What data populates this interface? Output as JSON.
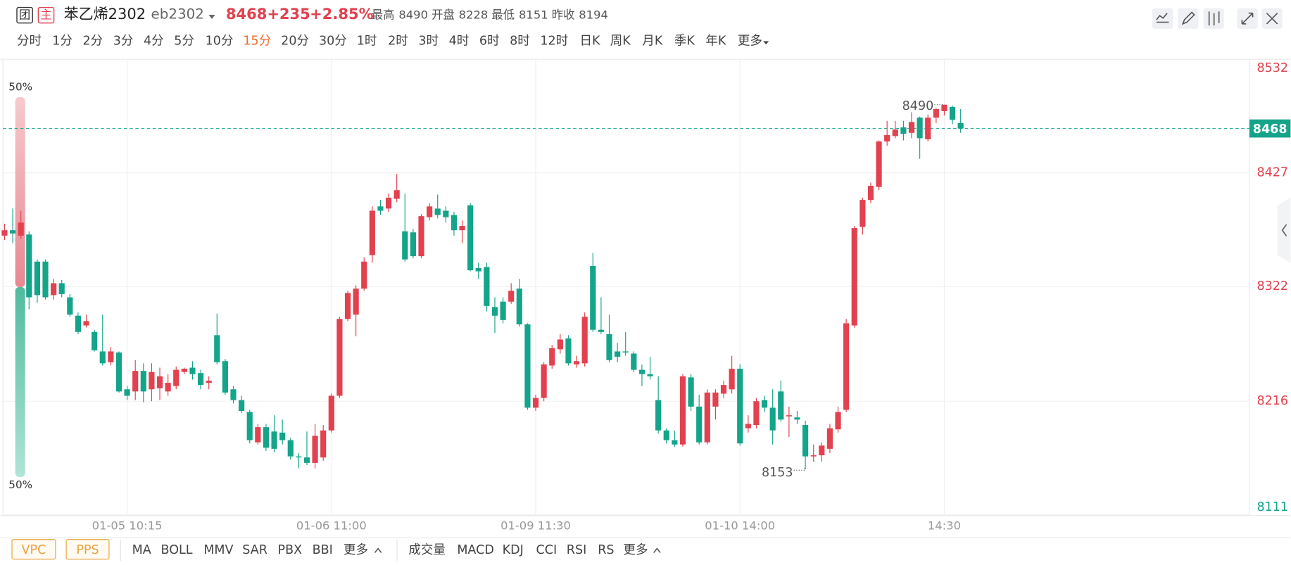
{
  "header": {
    "badge_1": "团",
    "badge_2": "主",
    "name": "苯乙烯2302",
    "code": "eb2302",
    "last": 8468,
    "change": "+235",
    "change_pct": "+2.85%",
    "high_label": "最高",
    "high": 8490,
    "open_label": "开盘",
    "open": 8228,
    "low_label": "最低",
    "low": 8151,
    "prev_close_label": "昨收",
    "prev_close": 8194
  },
  "timeframes": [
    "分时",
    "1分",
    "2分",
    "3分",
    "4分",
    "5分",
    "10分",
    "15分",
    "20分",
    "30分",
    "1时",
    "2时",
    "3时",
    "4时",
    "6时",
    "8时",
    "12时",
    "日K",
    "周K",
    "月K",
    "季K",
    "年K",
    "更多"
  ],
  "active_timeframe": "15分",
  "chart_data": {
    "type": "candlestick",
    "categories": [
      null,
      null,
      null,
      null,
      null,
      null,
      null,
      null,
      null,
      null,
      null,
      null,
      null,
      null,
      null,
      "01-05 10:15",
      null,
      null,
      null,
      null,
      null,
      null,
      null,
      null,
      null,
      null,
      null,
      null,
      null,
      null,
      null,
      null,
      null,
      null,
      null,
      null,
      null,
      null,
      null,
      null,
      "01-06 11:00",
      null,
      null,
      null,
      null,
      null,
      null,
      null,
      null,
      null,
      null,
      null,
      null,
      null,
      null,
      null,
      null,
      null,
      null,
      null,
      null,
      null,
      null,
      null,
      null,
      "01-09 11:30",
      null,
      null,
      null,
      null,
      null,
      null,
      null,
      null,
      null,
      null,
      null,
      null,
      null,
      null,
      null,
      null,
      null,
      null,
      null,
      null,
      null,
      null,
      null,
      null,
      "01-10 14:00",
      null,
      null,
      null,
      null,
      null,
      null,
      null,
      null,
      null,
      null,
      null,
      null,
      null,
      null,
      null,
      null,
      null,
      null,
      null,
      null,
      null,
      null,
      null,
      null,
      "14:30",
      null,
      null
    ],
    "open": [
      8369,
      8374,
      8369,
      8370,
      8345,
      8345,
      8314,
      8325,
      8312,
      8295,
      8286,
      8280,
      8262,
      8252,
      8261,
      8227,
      8225,
      8244,
      8227,
      8228,
      8225,
      8230,
      8243,
      8247,
      8242,
      8233,
      8277,
      8253,
      8227,
      8217,
      8206,
      8178,
      8192,
      8188,
      8187,
      8180,
      8165,
      8164,
      8159,
      8164,
      8189,
      8221,
      8292,
      8296,
      8320,
      8351,
      8396,
      8394,
      8403,
      8373,
      8372,
      8350,
      8386,
      8394,
      8392,
      8388,
      8374,
      8397,
      8339,
      8340,
      8303,
      8308,
      8308,
      8320,
      8287,
      8210,
      8219,
      8249,
      8264,
      8274,
      8250,
      8251,
      8341,
      8282,
      8278,
      8262,
      8262,
      8260,
      8245,
      8241,
      8217,
      8189,
      8180,
      8176,
      8238,
      8211,
      8178,
      8211,
      8223,
      8227,
      8246,
      8191,
      8194,
      8217,
      8210,
      8225,
      8202,
      8201,
      8194,
      8165,
      8166,
      8172,
      8190,
      8208,
      8286,
      8377,
      8402,
      8414,
      8456,
      8461,
      8469,
      8464,
      8478,
      8458,
      8478,
      8484,
      8488,
      8473
    ],
    "high": [
      8380,
      8394,
      8392,
      8373,
      8347,
      8347,
      8329,
      8328,
      8315,
      8298,
      8296,
      8282,
      8296,
      8266,
      8262,
      8230,
      8254,
      8251,
      8251,
      8247,
      8241,
      8248,
      8247,
      8253,
      8245,
      8239,
      8297,
      8255,
      8230,
      8221,
      8208,
      8195,
      8195,
      8203,
      8199,
      8182,
      8168,
      8188,
      8195,
      8194,
      8223,
      8294,
      8318,
      8323,
      8349,
      8396,
      8402,
      8408,
      8426,
      8408,
      8375,
      8389,
      8399,
      8407,
      8396,
      8391,
      8383,
      8399,
      8344,
      8344,
      8312,
      8312,
      8325,
      8329,
      8288,
      8222,
      8252,
      8268,
      8278,
      8277,
      8258,
      8298,
      8353,
      8312,
      8296,
      8270,
      8280,
      8262,
      8250,
      8257,
      8239,
      8191,
      8189,
      8241,
      8241,
      8222,
      8227,
      8227,
      8235,
      8258,
      8250,
      8203,
      8219,
      8221,
      8227,
      8235,
      8211,
      8207,
      8198,
      8176,
      8178,
      8195,
      8211,
      8292,
      8378,
      8404,
      8418,
      8457,
      8475,
      8475,
      8475,
      8483,
      8479,
      8481,
      8487,
      8490,
      8489,
      8486
    ],
    "low": [
      8365,
      8362,
      8366,
      8301,
      8307,
      8310,
      8310,
      8312,
      8294,
      8278,
      8284,
      8262,
      8249,
      8249,
      8224,
      8217,
      8217,
      8215,
      8216,
      8217,
      8221,
      8227,
      8241,
      8236,
      8227,
      8227,
      8250,
      8222,
      8214,
      8205,
      8177,
      8176,
      8170,
      8169,
      8176,
      8162,
      8154,
      8157,
      8154,
      8161,
      8187,
      8219,
      8290,
      8276,
      8318,
      8344,
      8388,
      8391,
      8400,
      8345,
      8348,
      8348,
      8383,
      8385,
      8381,
      8369,
      8362,
      8336,
      8329,
      8299,
      8279,
      8288,
      8306,
      8285,
      8208,
      8207,
      8216,
      8246,
      8260,
      8249,
      8247,
      8248,
      8280,
      8278,
      8252,
      8252,
      8258,
      8243,
      8230,
      8236,
      8186,
      8177,
      8174,
      8174,
      8207,
      8176,
      8176,
      8199,
      8219,
      8223,
      8175,
      8187,
      8191,
      8206,
      8176,
      8197,
      8183,
      8195,
      8153,
      8160,
      8160,
      8168,
      8187,
      8206,
      8284,
      8370,
      8399,
      8411,
      8452,
      8459,
      8457,
      8459,
      8440,
      8456,
      8473,
      8480,
      8472,
      8464
    ],
    "close": [
      8374,
      8371,
      8381,
      8312,
      8314,
      8312,
      8325,
      8315,
      8296,
      8280,
      8290,
      8263,
      8251,
      8262,
      8225,
      8221,
      8244,
      8225,
      8243,
      8239,
      8233,
      8245,
      8246,
      8241,
      8231,
      8235,
      8252,
      8224,
      8217,
      8207,
      8180,
      8192,
      8173,
      8172,
      8180,
      8165,
      8164,
      8159,
      8184,
      8189,
      8221,
      8292,
      8316,
      8320,
      8345,
      8392,
      8392,
      8404,
      8411,
      8347,
      8350,
      8387,
      8396,
      8388,
      8386,
      8374,
      8378,
      8337,
      8336,
      8304,
      8295,
      8291,
      8318,
      8287,
      8210,
      8219,
      8250,
      8265,
      8273,
      8251,
      8253,
      8294,
      8282,
      8280,
      8254,
      8257,
      8261,
      8245,
      8241,
      8239,
      8189,
      8180,
      8176,
      8239,
      8211,
      8178,
      8224,
      8224,
      8231,
      8246,
      8177,
      8195,
      8216,
      8210,
      8189,
      8199,
      8203,
      8199,
      8165,
      8166,
      8175,
      8191,
      8206,
      8288,
      8376,
      8402,
      8415,
      8456,
      8462,
      8467,
      8463,
      8474,
      8459,
      8478,
      8486,
      8490,
      8476,
      8468
    ],
    "up_color": "#e2414f",
    "down_color": "#14a48a",
    "ylim": [
      8111,
      8532
    ],
    "yticks": [
      8111,
      8216,
      8322,
      8427,
      8532
    ],
    "grid": true,
    "last_price": 8468,
    "high_annotation": 8490,
    "low_annotation": 8153,
    "ratio_bar": {
      "values": [
        50,
        50
      ],
      "value_labels": [
        "50%",
        "50%"
      ]
    }
  },
  "toolbar": {
    "main_buttons": [
      "VPC",
      "PPS"
    ],
    "main_indicators": [
      "MA",
      "BOLL",
      "MMV",
      "SAR",
      "PBX",
      "BBI",
      "更多"
    ],
    "sub_indicators": [
      "成交量",
      "MACD",
      "KDJ",
      "CCI",
      "RSI",
      "RS",
      "更多"
    ]
  }
}
